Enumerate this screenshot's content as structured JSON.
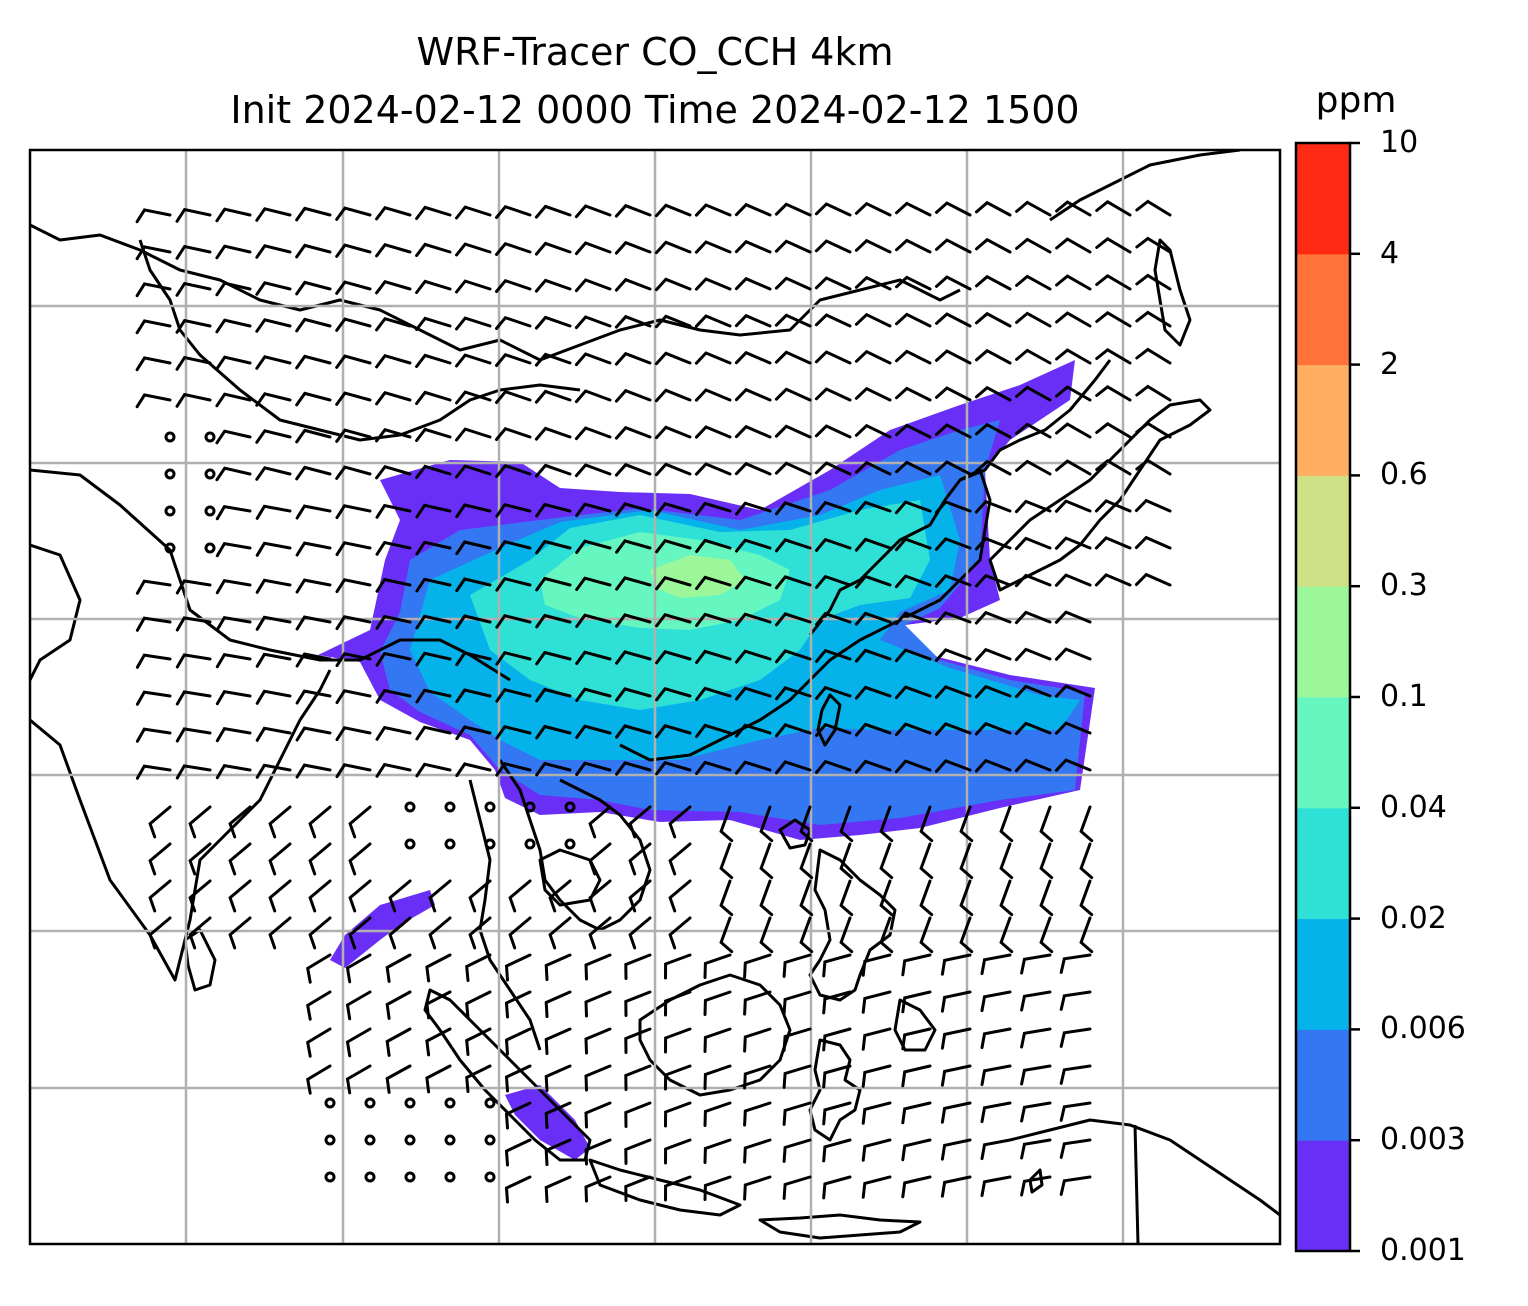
{
  "figure": {
    "title_line1": "WRF-Tracer CO_CCH 4km",
    "title_line2": "Init 2024-02-12 0000 Time 2024-02-12 1500"
  },
  "colorbar": {
    "unit": "ppm",
    "ticks": [
      "0.001",
      "0.003",
      "0.006",
      "0.02",
      "0.04",
      "0.1",
      "0.3",
      "0.6",
      "2",
      "4",
      "10"
    ],
    "colors": [
      "#6a2ff7",
      "#3377f2",
      "#05b3ea",
      "#2fe0d6",
      "#66f7c0",
      "#9cf79a",
      "#cfe087",
      "#ffaf60",
      "#ff7338",
      "#ff2a14"
    ]
  },
  "map": {
    "gridlines": true,
    "field": "CO_CCH tracer concentration (filled contours) with wind barbs",
    "frame_color": "#000000",
    "grid_color": "#b0b0b0"
  }
}
